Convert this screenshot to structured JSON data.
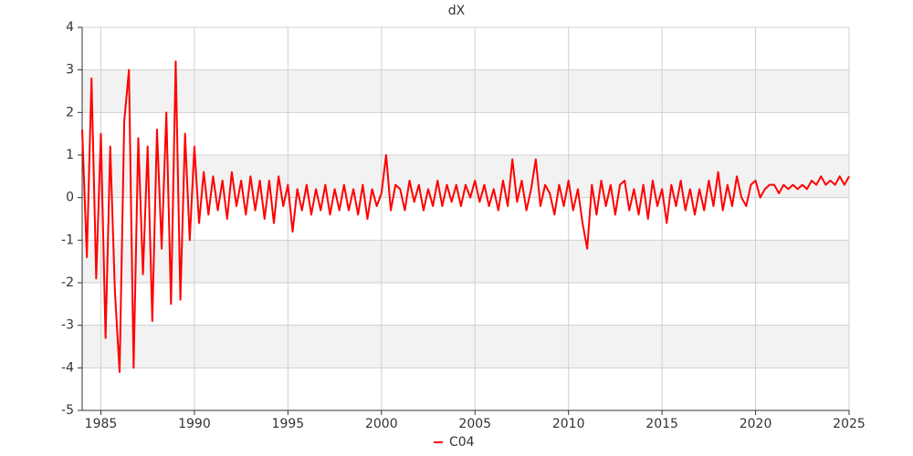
{
  "chart_data": {
    "type": "line",
    "title": "dX",
    "xlim": [
      1984,
      2025
    ],
    "xticks": [
      1985,
      1990,
      1995,
      2000,
      2005,
      2010,
      2015,
      2020,
      2025
    ],
    "ylim": [
      -5,
      4
    ],
    "yticks": [
      -5,
      -4,
      -3,
      -2,
      -1,
      0,
      1,
      2,
      3,
      4
    ],
    "grid": true,
    "x": [
      1984,
      1984.25,
      1984.5,
      1984.75,
      1985,
      1985.25,
      1985.5,
      1985.75,
      1986,
      1986.25,
      1986.5,
      1986.75,
      1987,
      1987.25,
      1987.5,
      1987.75,
      1988,
      1988.25,
      1988.5,
      1988.75,
      1989,
      1989.25,
      1989.5,
      1989.75,
      1990,
      1990.25,
      1990.5,
      1990.75,
      1991,
      1991.25,
      1991.5,
      1991.75,
      1992,
      1992.25,
      1992.5,
      1992.75,
      1993,
      1993.25,
      1993.5,
      1993.75,
      1994,
      1994.25,
      1994.5,
      1994.75,
      1995,
      1995.25,
      1995.5,
      1995.75,
      1996,
      1996.25,
      1996.5,
      1996.75,
      1997,
      1997.25,
      1997.5,
      1997.75,
      1998,
      1998.25,
      1998.5,
      1998.75,
      1999,
      1999.25,
      1999.5,
      1999.75,
      2000,
      2000.25,
      2000.5,
      2000.75,
      2001,
      2001.25,
      2001.5,
      2001.75,
      2002,
      2002.25,
      2002.5,
      2002.75,
      2003,
      2003.25,
      2003.5,
      2003.75,
      2004,
      2004.25,
      2004.5,
      2004.75,
      2005,
      2005.25,
      2005.5,
      2005.75,
      2006,
      2006.25,
      2006.5,
      2006.75,
      2007,
      2007.25,
      2007.5,
      2007.75,
      2008,
      2008.25,
      2008.5,
      2008.75,
      2009,
      2009.25,
      2009.5,
      2009.75,
      2010,
      2010.25,
      2010.5,
      2010.75,
      2011,
      2011.25,
      2011.5,
      2011.75,
      2012,
      2012.25,
      2012.5,
      2012.75,
      2013,
      2013.25,
      2013.5,
      2013.75,
      2014,
      2014.25,
      2014.5,
      2014.75,
      2015,
      2015.25,
      2015.5,
      2015.75,
      2016,
      2016.25,
      2016.5,
      2016.75,
      2017,
      2017.25,
      2017.5,
      2017.75,
      2018,
      2018.25,
      2018.5,
      2018.75,
      2019,
      2019.25,
      2019.5,
      2019.75,
      2020,
      2020.25,
      2020.5,
      2020.75,
      2021,
      2021.25,
      2021.5,
      2021.75,
      2022,
      2022.25,
      2022.5,
      2022.75,
      2023,
      2023.25,
      2023.5,
      2023.75,
      2024,
      2024.25,
      2024.5,
      2024.75,
      2025
    ],
    "series": [
      {
        "name": "C04",
        "color": "#ff0000",
        "values": [
          1.6,
          -1.4,
          2.8,
          -1.9,
          1.5,
          -3.3,
          1.2,
          -2.2,
          -4.1,
          1.8,
          3.0,
          -4.0,
          1.4,
          -1.8,
          1.2,
          -2.9,
          1.6,
          -1.2,
          2.0,
          -2.5,
          3.2,
          -2.4,
          1.5,
          -1.0,
          1.2,
          -0.6,
          0.6,
          -0.4,
          0.5,
          -0.3,
          0.4,
          -0.5,
          0.6,
          -0.2,
          0.4,
          -0.4,
          0.5,
          -0.3,
          0.4,
          -0.5,
          0.4,
          -0.6,
          0.5,
          -0.2,
          0.3,
          -0.8,
          0.2,
          -0.3,
          0.3,
          -0.4,
          0.2,
          -0.3,
          0.3,
          -0.4,
          0.2,
          -0.3,
          0.3,
          -0.3,
          0.2,
          -0.4,
          0.3,
          -0.5,
          0.2,
          -0.2,
          0.1,
          1.0,
          -0.3,
          0.3,
          0.2,
          -0.3,
          0.4,
          -0.1,
          0.3,
          -0.3,
          0.2,
          -0.2,
          0.4,
          -0.2,
          0.3,
          -0.1,
          0.3,
          -0.2,
          0.3,
          0.0,
          0.4,
          -0.1,
          0.3,
          -0.2,
          0.2,
          -0.3,
          0.4,
          -0.2,
          0.9,
          -0.1,
          0.4,
          -0.3,
          0.2,
          0.9,
          -0.2,
          0.3,
          0.1,
          -0.4,
          0.3,
          -0.2,
          0.4,
          -0.3,
          0.2,
          -0.6,
          -1.2,
          0.3,
          -0.4,
          0.4,
          -0.2,
          0.3,
          -0.4,
          0.3,
          0.4,
          -0.3,
          0.2,
          -0.4,
          0.3,
          -0.5,
          0.4,
          -0.2,
          0.2,
          -0.6,
          0.3,
          -0.2,
          0.4,
          -0.3,
          0.2,
          -0.4,
          0.2,
          -0.3,
          0.4,
          -0.2,
          0.6,
          -0.3,
          0.3,
          -0.2,
          0.5,
          0.0,
          -0.2,
          0.3,
          0.4,
          0.0,
          0.2,
          0.3,
          0.3,
          0.1,
          0.3,
          0.2,
          0.3,
          0.2,
          0.3,
          0.2,
          0.4,
          0.3,
          0.5,
          0.3,
          0.4,
          0.3,
          0.5,
          0.3,
          0.5
        ]
      }
    ]
  }
}
